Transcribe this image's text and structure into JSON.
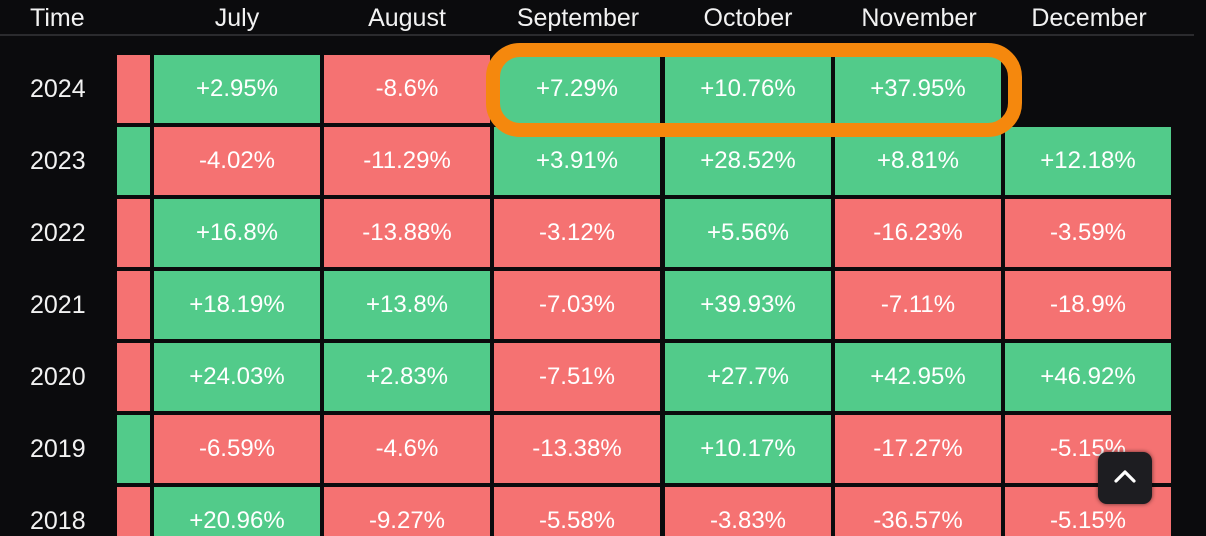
{
  "chart_data": {
    "type": "heatmap",
    "corner_label": "Time",
    "columns": [
      "July",
      "August",
      "September",
      "October",
      "November",
      "December"
    ],
    "rows": [
      {
        "year": "2024",
        "stub": "neg",
        "values": [
          "+2.95%",
          "-8.6%",
          "+7.29%",
          "+10.76%",
          "+37.95%",
          null
        ]
      },
      {
        "year": "2023",
        "stub": "pos",
        "values": [
          "-4.02%",
          "-11.29%",
          "+3.91%",
          "+28.52%",
          "+8.81%",
          "+12.18%"
        ]
      },
      {
        "year": "2022",
        "stub": "neg",
        "values": [
          "+16.8%",
          "-13.88%",
          "-3.12%",
          "+5.56%",
          "-16.23%",
          "-3.59%"
        ]
      },
      {
        "year": "2021",
        "stub": "neg",
        "values": [
          "+18.19%",
          "+13.8%",
          "-7.03%",
          "+39.93%",
          "-7.11%",
          "-18.9%"
        ]
      },
      {
        "year": "2020",
        "stub": "neg",
        "values": [
          "+24.03%",
          "+2.83%",
          "-7.51%",
          "+27.7%",
          "+42.95%",
          "+46.92%"
        ]
      },
      {
        "year": "2019",
        "stub": "pos",
        "values": [
          "-6.59%",
          "-4.6%",
          "-13.38%",
          "+10.17%",
          "-17.27%",
          "-5.15%"
        ]
      },
      {
        "year": "2018",
        "stub": "neg",
        "values": [
          "+20.96%",
          "-9.27%",
          "-5.58%",
          "-3.83%",
          "-36.57%",
          "-5.15%"
        ]
      }
    ],
    "highlight": {
      "row": "2024",
      "columns": [
        "September",
        "October",
        "November"
      ],
      "color": "#f5880d"
    },
    "colors": {
      "positive": "#52cb8a",
      "negative": "#f57272",
      "background": "#0b0b0d"
    }
  },
  "ui": {
    "scroll_top_icon": "chevron-up-icon"
  }
}
